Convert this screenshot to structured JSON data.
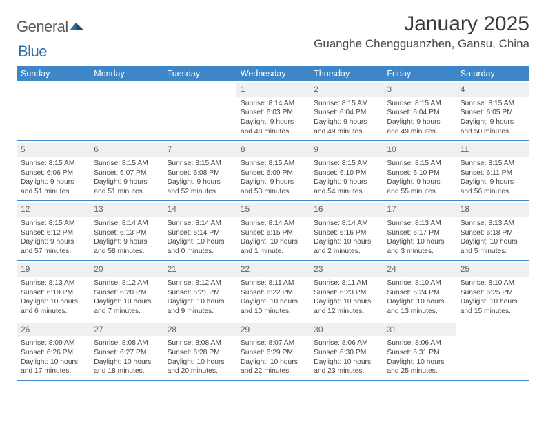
{
  "logo": {
    "general": "General",
    "blue": "Blue"
  },
  "title": "January 2025",
  "location": "Guanghe Chengguanzhen, Gansu, China",
  "colors": {
    "header_bg": "#3d87c9",
    "header_text": "#ffffff",
    "daynum_bg": "#eef0f1",
    "daynum_text": "#5d6468",
    "body_text": "#444444",
    "rule": "#3d87c9",
    "page_bg": "#ffffff",
    "logo_general": "#5a5a5a",
    "logo_blue": "#2f6fa8"
  },
  "dayNames": [
    "Sunday",
    "Monday",
    "Tuesday",
    "Wednesday",
    "Thursday",
    "Friday",
    "Saturday"
  ],
  "weeks": [
    [
      {
        "n": "",
        "sr": "",
        "ss": "",
        "dl": ""
      },
      {
        "n": "",
        "sr": "",
        "ss": "",
        "dl": ""
      },
      {
        "n": "",
        "sr": "",
        "ss": "",
        "dl": ""
      },
      {
        "n": "1",
        "sr": "8:14 AM",
        "ss": "6:03 PM",
        "dl": "9 hours and 48 minutes."
      },
      {
        "n": "2",
        "sr": "8:15 AM",
        "ss": "6:04 PM",
        "dl": "9 hours and 49 minutes."
      },
      {
        "n": "3",
        "sr": "8:15 AM",
        "ss": "6:04 PM",
        "dl": "9 hours and 49 minutes."
      },
      {
        "n": "4",
        "sr": "8:15 AM",
        "ss": "6:05 PM",
        "dl": "9 hours and 50 minutes."
      }
    ],
    [
      {
        "n": "5",
        "sr": "8:15 AM",
        "ss": "6:06 PM",
        "dl": "9 hours and 51 minutes."
      },
      {
        "n": "6",
        "sr": "8:15 AM",
        "ss": "6:07 PM",
        "dl": "9 hours and 51 minutes."
      },
      {
        "n": "7",
        "sr": "8:15 AM",
        "ss": "6:08 PM",
        "dl": "9 hours and 52 minutes."
      },
      {
        "n": "8",
        "sr": "8:15 AM",
        "ss": "6:09 PM",
        "dl": "9 hours and 53 minutes."
      },
      {
        "n": "9",
        "sr": "8:15 AM",
        "ss": "6:10 PM",
        "dl": "9 hours and 54 minutes."
      },
      {
        "n": "10",
        "sr": "8:15 AM",
        "ss": "6:10 PM",
        "dl": "9 hours and 55 minutes."
      },
      {
        "n": "11",
        "sr": "8:15 AM",
        "ss": "6:11 PM",
        "dl": "9 hours and 56 minutes."
      }
    ],
    [
      {
        "n": "12",
        "sr": "8:15 AM",
        "ss": "6:12 PM",
        "dl": "9 hours and 57 minutes."
      },
      {
        "n": "13",
        "sr": "8:14 AM",
        "ss": "6:13 PM",
        "dl": "9 hours and 58 minutes."
      },
      {
        "n": "14",
        "sr": "8:14 AM",
        "ss": "6:14 PM",
        "dl": "10 hours and 0 minutes."
      },
      {
        "n": "15",
        "sr": "8:14 AM",
        "ss": "6:15 PM",
        "dl": "10 hours and 1 minute."
      },
      {
        "n": "16",
        "sr": "8:14 AM",
        "ss": "6:16 PM",
        "dl": "10 hours and 2 minutes."
      },
      {
        "n": "17",
        "sr": "8:13 AM",
        "ss": "6:17 PM",
        "dl": "10 hours and 3 minutes."
      },
      {
        "n": "18",
        "sr": "8:13 AM",
        "ss": "6:18 PM",
        "dl": "10 hours and 5 minutes."
      }
    ],
    [
      {
        "n": "19",
        "sr": "8:13 AM",
        "ss": "6:19 PM",
        "dl": "10 hours and 6 minutes."
      },
      {
        "n": "20",
        "sr": "8:12 AM",
        "ss": "6:20 PM",
        "dl": "10 hours and 7 minutes."
      },
      {
        "n": "21",
        "sr": "8:12 AM",
        "ss": "6:21 PM",
        "dl": "10 hours and 9 minutes."
      },
      {
        "n": "22",
        "sr": "8:11 AM",
        "ss": "6:22 PM",
        "dl": "10 hours and 10 minutes."
      },
      {
        "n": "23",
        "sr": "8:11 AM",
        "ss": "6:23 PM",
        "dl": "10 hours and 12 minutes."
      },
      {
        "n": "24",
        "sr": "8:10 AM",
        "ss": "6:24 PM",
        "dl": "10 hours and 13 minutes."
      },
      {
        "n": "25",
        "sr": "8:10 AM",
        "ss": "6:25 PM",
        "dl": "10 hours and 15 minutes."
      }
    ],
    [
      {
        "n": "26",
        "sr": "8:09 AM",
        "ss": "6:26 PM",
        "dl": "10 hours and 17 minutes."
      },
      {
        "n": "27",
        "sr": "8:08 AM",
        "ss": "6:27 PM",
        "dl": "10 hours and 18 minutes."
      },
      {
        "n": "28",
        "sr": "8:08 AM",
        "ss": "6:28 PM",
        "dl": "10 hours and 20 minutes."
      },
      {
        "n": "29",
        "sr": "8:07 AM",
        "ss": "6:29 PM",
        "dl": "10 hours and 22 minutes."
      },
      {
        "n": "30",
        "sr": "8:06 AM",
        "ss": "6:30 PM",
        "dl": "10 hours and 23 minutes."
      },
      {
        "n": "31",
        "sr": "8:06 AM",
        "ss": "6:31 PM",
        "dl": "10 hours and 25 minutes."
      },
      {
        "n": "",
        "sr": "",
        "ss": "",
        "dl": ""
      }
    ]
  ],
  "labels": {
    "sunrise": "Sunrise:",
    "sunset": "Sunset:",
    "daylight": "Daylight:"
  }
}
